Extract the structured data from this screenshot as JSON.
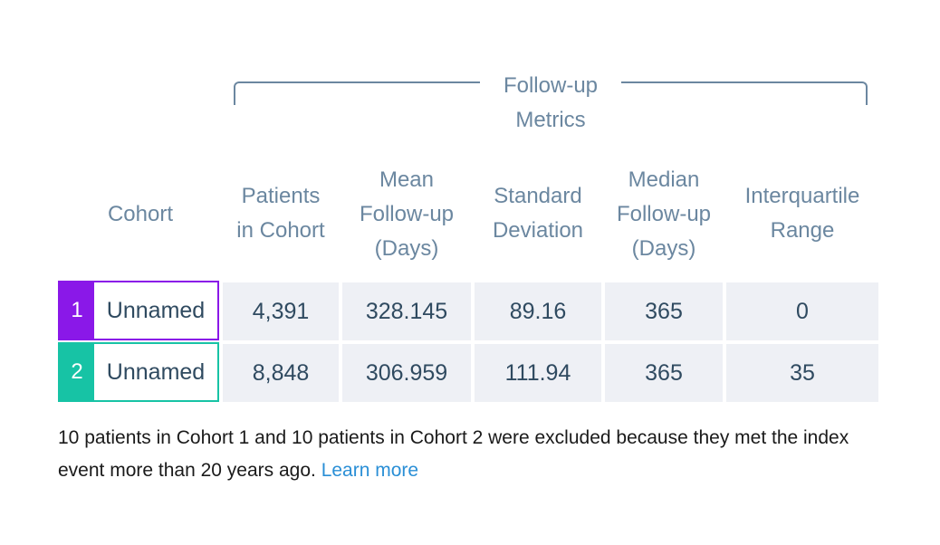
{
  "group_header": "Follow-up\nMetrics",
  "columns": {
    "cohort": "Cohort",
    "patients": "Patients\nin Cohort",
    "mean": "Mean\nFollow-up\n(Days)",
    "sd": "Standard\nDeviation",
    "median": "Median\nFollow-up\n(Days)",
    "iqr": "Interquartile\nRange"
  },
  "rows": [
    {
      "index": "1",
      "name": "Unnamed",
      "color": "#8a18e8",
      "patients": "4,391",
      "mean": "328.145",
      "sd": "89.16",
      "median": "365",
      "iqr": "0"
    },
    {
      "index": "2",
      "name": "Unnamed",
      "color": "#17c3a5",
      "patients": "8,848",
      "mean": "306.959",
      "sd": "111.94",
      "median": "365",
      "iqr": "35"
    }
  ],
  "footnote": {
    "text": "10 patients in Cohort 1 and 10 patients in Cohort 2 were excluded because they met the index event more than 20 years ago.",
    "link": "Learn more"
  }
}
